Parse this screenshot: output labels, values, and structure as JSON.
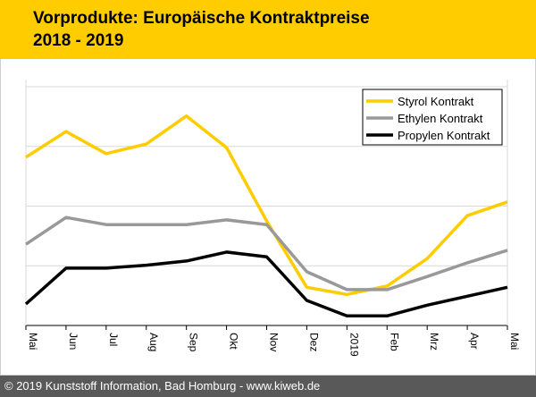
{
  "header": {
    "title_line1": "Vorprodukte: Europäische Kontraktpreise",
    "title_line2": "2018 - 2019",
    "background_color": "#ffcc00"
  },
  "footer": {
    "text": "© 2019 Kunststoff Information, Bad Homburg - www.kiweb.de",
    "background_color": "#595959"
  },
  "chart_data": {
    "type": "line",
    "title": "Vorprodukte: Europäische Kontraktpreise 2018 - 2019",
    "xlabel": "",
    "ylabel": "",
    "y_tick_labels_shown": false,
    "y_units_note": "relative index (gridline units; no y-axis labels shown)",
    "ylim": [
      0,
      4
    ],
    "grid": true,
    "legend_position": "top-right",
    "categories": [
      "Mai",
      "Jun",
      "Jul",
      "Aug",
      "Sep",
      "Okt",
      "Nov",
      "Dez",
      "2019",
      "Feb",
      "Mrz",
      "Apr",
      "Mai"
    ],
    "series": [
      {
        "name": "Styrol Kontrakt",
        "color": "#ffcc00",
        "values": [
          2.82,
          3.25,
          2.88,
          3.04,
          3.51,
          2.98,
          1.75,
          0.64,
          0.52,
          0.66,
          1.12,
          1.84,
          2.07
        ]
      },
      {
        "name": "Ethylen Kontrakt",
        "color": "#999999",
        "values": [
          1.36,
          1.81,
          1.69,
          1.69,
          1.69,
          1.77,
          1.69,
          0.9,
          0.6,
          0.6,
          0.82,
          1.05,
          1.26
        ]
      },
      {
        "name": "Propylen Kontrakt",
        "color": "#000000",
        "values": [
          0.36,
          0.96,
          0.96,
          1.01,
          1.08,
          1.23,
          1.15,
          0.42,
          0.16,
          0.16,
          0.34,
          0.49,
          0.64
        ]
      }
    ]
  }
}
